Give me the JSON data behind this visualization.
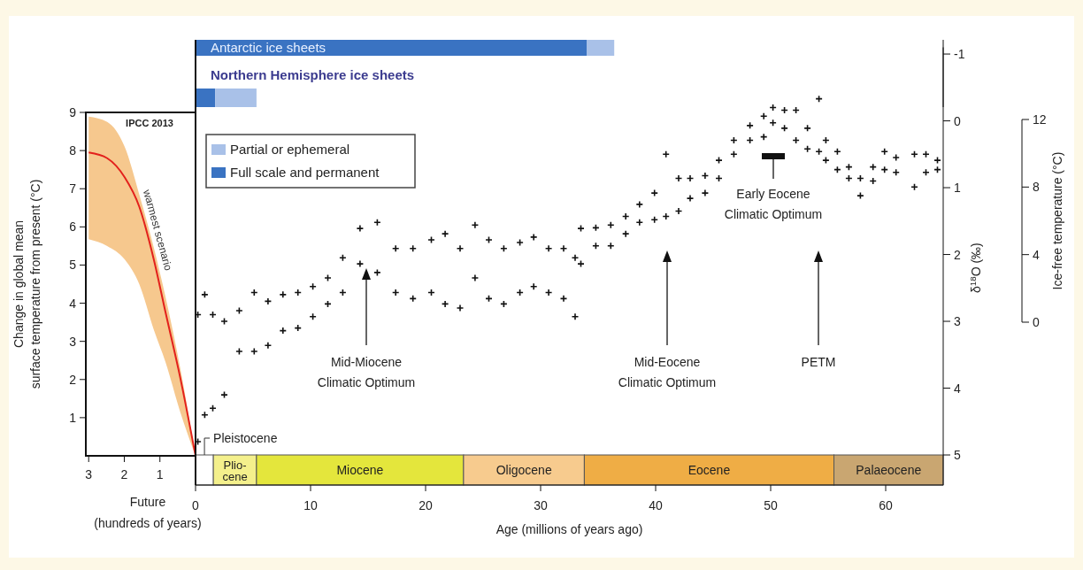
{
  "chart_data": [
    {
      "type": "line",
      "xlabel": "Future\n(hundreds of years)",
      "ylabel": "Change in global mean\nsurface temperature from present  (°C)",
      "xlim": [
        3.08,
        0
      ],
      "xticks": [
        3,
        2,
        1
      ],
      "ylim": [
        0,
        9
      ],
      "yticks": [
        1,
        2,
        3,
        4,
        5,
        6,
        7,
        8,
        9
      ],
      "series": [
        {
          "name": "warmest scenario",
          "color": "#e3211c",
          "x": [
            3,
            2.48,
            1.99,
            1.58,
            1.17,
            0.84,
            0.43,
            0
          ],
          "values": [
            7.95,
            7.8,
            7.3,
            6.53,
            5.14,
            3.75,
            2.05,
            0
          ],
          "lower": [
            5.68,
            5.5,
            5.15,
            4.5,
            3.3,
            2.45,
            1.15,
            0
          ],
          "upper": [
            8.89,
            8.75,
            8.1,
            6.85,
            5.45,
            4.15,
            2.3,
            0
          ]
        }
      ],
      "annotations": [
        "IPCC 2013"
      ]
    },
    {
      "type": "scatter",
      "xlabel": "Age (millions of years ago)",
      "ylabel": "δ$^{18}$O (‰)",
      "y2label": "Ice-free temperature (°C)",
      "xlim": [
        0,
        65
      ],
      "xticks": [
        0,
        10,
        20,
        30,
        40,
        50,
        60
      ],
      "ylim": [
        5.45,
        -1.1
      ],
      "yticks": [
        -1,
        0,
        1,
        2,
        3,
        4,
        5
      ],
      "y2lim": [
        0,
        12
      ],
      "y2ticks": [
        0,
        4,
        8,
        12
      ],
      "marker": "cross",
      "series": [
        {
          "color": "#111111",
          "x": [
            0.2,
            0.2,
            0.8,
            0.8,
            1.5,
            1.5,
            2.5,
            2.5,
            3.8,
            3.8,
            5.1,
            5.1,
            6.3,
            6.3,
            7.6,
            7.6,
            8.9,
            8.9,
            10.2,
            10.2,
            11.5,
            11.5,
            12.8,
            12.8,
            14.3,
            14.3,
            15.8,
            15.8,
            17.4,
            17.4,
            18.9,
            18.9,
            20.5,
            20.5,
            21.7,
            21.7,
            23,
            23,
            24.3,
            24.3,
            25.5,
            25.5,
            26.8,
            26.8,
            28.2,
            28.2,
            29.4,
            29.4,
            30.7,
            30.7,
            32,
            32,
            33,
            33,
            33.5,
            33.5,
            34.8,
            34.8,
            36.1,
            36.1,
            37.4,
            37.4,
            38.6,
            38.6,
            39.9,
            39.9,
            40.9,
            40.9,
            42,
            42,
            43,
            43,
            44.3,
            44.3,
            45.5,
            45.5,
            46.8,
            46.8,
            48.2,
            48.2,
            49.4,
            49.4,
            50.2,
            50.2,
            51.2,
            51.2,
            52.2,
            52.2,
            53.2,
            53.2,
            54.2,
            54.2,
            54.8,
            54.8,
            55.8,
            55.8,
            56.8,
            56.8,
            57.8,
            57.8,
            58.9,
            58.9,
            59.9,
            59.9,
            60.9,
            60.9,
            62.5,
            62.5,
            63.5,
            63.5,
            64.5,
            64.5
          ],
          "values": [
            2.9,
            4.8,
            2.6,
            4.4,
            2.9,
            4.3,
            3.0,
            4.1,
            2.84,
            3.45,
            2.57,
            3.45,
            2.7,
            3.36,
            2.6,
            3.14,
            2.57,
            3.1,
            2.48,
            2.93,
            2.35,
            2.74,
            2.05,
            2.57,
            1.61,
            2.14,
            1.52,
            2.27,
            1.91,
            2.57,
            1.91,
            2.66,
            1.78,
            2.57,
            1.69,
            2.74,
            1.91,
            2.8,
            1.56,
            2.35,
            1.78,
            2.66,
            1.91,
            2.74,
            1.82,
            2.57,
            1.74,
            2.48,
            1.91,
            2.57,
            1.91,
            2.66,
            2.05,
            2.93,
            1.61,
            2.14,
            1.6,
            1.87,
            1.56,
            1.87,
            1.43,
            1.69,
            1.25,
            1.52,
            1.08,
            1.48,
            0.5,
            1.43,
            0.86,
            1.35,
            0.86,
            1.16,
            0.82,
            1.08,
            0.59,
            0.86,
            0.29,
            0.5,
            0.07,
            0.29,
            -0.07,
            0.24,
            -0.2,
            0.03,
            -0.16,
            0.11,
            -0.16,
            0.29,
            0.11,
            0.42,
            -0.33,
            0.46,
            0.29,
            0.59,
            0.46,
            0.73,
            0.69,
            0.86,
            0.86,
            1.12,
            0.69,
            0.9,
            0.46,
            0.73,
            0.55,
            0.77,
            0.5,
            0.99,
            0.5,
            0.77,
            0.59,
            0.73
          ]
        }
      ],
      "bands": [
        {
          "axis": "x",
          "from": 0,
          "to": 1.55,
          "label": "Pleistocene",
          "color": "#ffffff"
        },
        {
          "axis": "x",
          "from": 1.55,
          "to": 5.3,
          "label": "Plio-\ncene",
          "color": "#f4f08c"
        },
        {
          "axis": "x",
          "from": 5.3,
          "to": 23.3,
          "label": "Miocene",
          "color": "#e4e63c"
        },
        {
          "axis": "x",
          "from": 23.3,
          "to": 33.8,
          "label": "Oligocene",
          "color": "#f7cb8e"
        },
        {
          "axis": "x",
          "from": 33.8,
          "to": 55.5,
          "label": "Eocene",
          "color": "#efad45"
        },
        {
          "axis": "x",
          "from": 55.5,
          "to": 65,
          "label": "Palaeocene",
          "color": "#c9a671"
        }
      ],
      "annotations": [
        "Mid-Miocene\nClimatic Optimum",
        "Mid-Eocene\nClimatic Optimum",
        "Early Eocene\nClimatic Optimum",
        "PETM"
      ]
    },
    {
      "type": "bar",
      "orientation": "horizontal",
      "stacked": true,
      "categories": [
        "Antarctic ice sheets",
        "Northern Hemisphere ice sheets"
      ],
      "xlim": [
        0,
        65
      ],
      "tick_labels": "y",
      "legend": "bottom left",
      "series": [
        {
          "name": "Full scale and permanent",
          "color": "#3a73c2",
          "values": [
            34,
            1.7
          ]
        },
        {
          "name": "Partial or ephemeral",
          "color": "#a9c1e8",
          "values": [
            2.4,
            3.6
          ]
        }
      ]
    }
  ]
}
